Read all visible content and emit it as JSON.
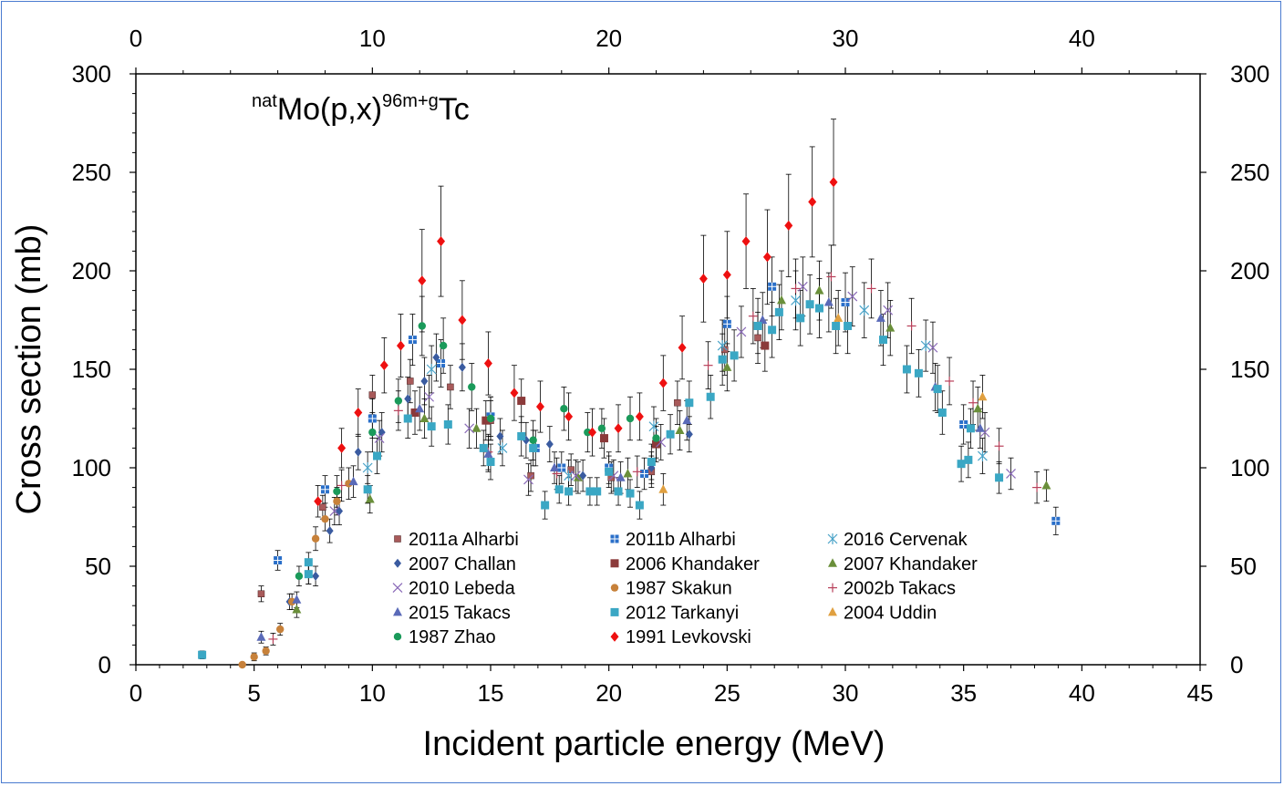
{
  "chart_data": {
    "type": "scatter",
    "title_parts": {
      "pre_sup": "nat",
      "main1": "Mo(p,x)",
      "mid_sup": "96m+g",
      "main2": "Tc"
    },
    "xlabel": "Incident particle energy (MeV)",
    "ylabel": "Cross section (mb)",
    "xlim": [
      0,
      45
    ],
    "ylim": [
      0,
      300
    ],
    "xticks": [
      "0",
      "5",
      "10",
      "15",
      "20",
      "25",
      "30",
      "35",
      "40",
      "45"
    ],
    "yticks": [
      "0",
      "50",
      "100",
      "150",
      "200",
      "250",
      "300"
    ],
    "x2ticks": [
      "0",
      "10",
      "20",
      "30",
      "40"
    ],
    "x2lim": [
      0,
      45
    ],
    "legend_position": "lower-center",
    "series": [
      {
        "name": "2011a Alharbi",
        "color": "#a85a5a",
        "marker": "square-small",
        "points": [
          [
            5.3,
            36,
            4
          ],
          [
            7.9,
            80,
            6
          ],
          [
            10.0,
            137,
            10
          ],
          [
            11.6,
            144,
            11
          ],
          [
            13.3,
            141,
            11
          ],
          [
            15.0,
            124,
            10
          ],
          [
            16.7,
            96,
            8
          ],
          [
            18.4,
            99,
            8
          ],
          [
            20.1,
            95,
            8
          ],
          [
            21.8,
            98,
            8
          ],
          [
            22.9,
            133,
            11
          ],
          [
            24.9,
            160,
            13
          ],
          [
            26.3,
            166,
            13
          ]
        ]
      },
      {
        "name": "2011b Alharbi",
        "color": "#2a6fc9",
        "marker": "square-cross",
        "points": [
          [
            6.0,
            53,
            5
          ],
          [
            8.0,
            89,
            7
          ],
          [
            10.0,
            125,
            10
          ],
          [
            11.7,
            165,
            13
          ],
          [
            12.9,
            153,
            12
          ],
          [
            15.0,
            126,
            10
          ],
          [
            16.9,
            110,
            9
          ],
          [
            18.0,
            100,
            8
          ],
          [
            20.0,
            100,
            8
          ],
          [
            21.5,
            97,
            8
          ],
          [
            25.0,
            173,
            14
          ],
          [
            26.9,
            192,
            15
          ],
          [
            30.0,
            184,
            15
          ],
          [
            35.0,
            122,
            10
          ],
          [
            38.9,
            73,
            7
          ]
        ]
      },
      {
        "name": "2016 Cervenak",
        "color": "#4aa3c8",
        "marker": "asterisk",
        "points": [
          [
            9.8,
            100,
            8
          ],
          [
            12.5,
            150,
            12
          ],
          [
            15.5,
            110,
            9
          ],
          [
            18.3,
            96,
            8
          ],
          [
            21.9,
            121,
            10
          ],
          [
            24.8,
            162,
            13
          ],
          [
            27.9,
            185,
            15
          ],
          [
            30.8,
            180,
            14
          ],
          [
            33.4,
            162,
            13
          ],
          [
            35.8,
            106,
            9
          ]
        ]
      },
      {
        "name": "2007 Challan",
        "color": "#3a5ba0",
        "marker": "diamond-small",
        "points": [
          [
            6.5,
            32,
            4
          ],
          [
            7.6,
            45,
            5
          ],
          [
            8.2,
            68,
            6
          ],
          [
            8.6,
            78,
            7
          ],
          [
            9.4,
            108,
            9
          ],
          [
            10.4,
            118,
            10
          ],
          [
            11.5,
            135,
            11
          ],
          [
            12.2,
            144,
            12
          ],
          [
            12.7,
            156,
            12
          ],
          [
            13.8,
            151,
            12
          ],
          [
            15.4,
            116,
            9
          ],
          [
            16.5,
            114,
            9
          ],
          [
            17.5,
            112,
            9
          ],
          [
            18.9,
            96,
            8
          ],
          [
            21.8,
            100,
            8
          ],
          [
            23.4,
            117,
            9
          ]
        ]
      },
      {
        "name": "2006 Khandaker",
        "color": "#8b3a3a",
        "marker": "square",
        "points": [
          [
            11.8,
            128,
            11
          ],
          [
            14.8,
            124,
            10
          ],
          [
            16.3,
            134,
            11
          ],
          [
            19.8,
            115,
            10
          ],
          [
            22.0,
            112,
            9
          ],
          [
            26.6,
            162,
            13
          ]
        ]
      },
      {
        "name": "2007 Khandaker",
        "color": "#6a8f3a",
        "marker": "triangle",
        "points": [
          [
            6.8,
            28,
            4
          ],
          [
            9.9,
            84,
            7
          ],
          [
            12.2,
            125,
            10
          ],
          [
            14.4,
            120,
            10
          ],
          [
            18.7,
            95,
            8
          ],
          [
            20.8,
            97,
            8
          ],
          [
            23.0,
            119,
            10
          ],
          [
            25.0,
            151,
            12
          ],
          [
            27.3,
            185,
            15
          ],
          [
            28.9,
            190,
            15
          ],
          [
            31.9,
            171,
            14
          ],
          [
            35.6,
            130,
            11
          ],
          [
            38.5,
            91,
            8
          ]
        ]
      },
      {
        "name": "2010 Lebeda",
        "color": "#8a6ab8",
        "marker": "x",
        "points": [
          [
            8.4,
            78,
            7
          ],
          [
            10.3,
            115,
            9
          ],
          [
            12.4,
            136,
            11
          ],
          [
            14.1,
            120,
            10
          ],
          [
            16.6,
            94,
            8
          ],
          [
            18.6,
            96,
            8
          ],
          [
            20.2,
            96,
            8
          ],
          [
            22.2,
            113,
            9
          ],
          [
            25.6,
            169,
            13
          ],
          [
            28.2,
            192,
            15
          ],
          [
            30.3,
            187,
            15
          ],
          [
            31.8,
            180,
            14
          ],
          [
            33.7,
            161,
            13
          ],
          [
            35.9,
            118,
            10
          ],
          [
            37.0,
            97,
            8
          ]
        ]
      },
      {
        "name": "1987 Skakun",
        "color": "#c7813a",
        "marker": "circle",
        "points": [
          [
            4.5,
            0,
            0
          ],
          [
            5.0,
            4,
            2
          ],
          [
            5.5,
            7,
            2
          ],
          [
            6.1,
            18,
            3
          ],
          [
            6.6,
            32,
            4
          ],
          [
            7.3,
            46,
            5
          ],
          [
            7.6,
            64,
            6
          ],
          [
            8.0,
            74,
            6
          ],
          [
            8.5,
            83,
            7
          ],
          [
            9.0,
            92,
            8
          ]
        ]
      },
      {
        "name": "2002b Takacs",
        "color": "#b8405a",
        "marker": "plus",
        "points": [
          [
            5.8,
            13,
            3
          ],
          [
            8.7,
            91,
            8
          ],
          [
            11.1,
            129,
            10
          ],
          [
            14.9,
            108,
            9
          ],
          [
            17.8,
            97,
            8
          ],
          [
            21.2,
            98,
            8
          ],
          [
            24.2,
            152,
            12
          ],
          [
            26.1,
            177,
            14
          ],
          [
            27.9,
            191,
            15
          ],
          [
            29.4,
            197,
            16
          ],
          [
            31.1,
            191,
            15
          ],
          [
            32.8,
            172,
            14
          ],
          [
            34.4,
            144,
            12
          ],
          [
            35.4,
            133,
            11
          ],
          [
            36.5,
            111,
            9
          ],
          [
            38.1,
            90,
            8
          ]
        ]
      },
      {
        "name": "2015 Takacs",
        "color": "#5a6ab8",
        "marker": "triangle",
        "points": [
          [
            5.3,
            14,
            3
          ],
          [
            6.8,
            33,
            4
          ],
          [
            9.2,
            93,
            8
          ],
          [
            12.0,
            130,
            11
          ],
          [
            14.9,
            107,
            9
          ],
          [
            17.7,
            100,
            8
          ],
          [
            20.5,
            95,
            8
          ],
          [
            23.3,
            124,
            10
          ],
          [
            26.5,
            175,
            14
          ],
          [
            29.3,
            184,
            15
          ],
          [
            31.5,
            176,
            14
          ],
          [
            33.8,
            141,
            12
          ],
          [
            35.7,
            120,
            10
          ]
        ]
      },
      {
        "name": "2012 Tarkanyi",
        "color": "#3aa7c4",
        "marker": "square",
        "points": [
          [
            2.8,
            5,
            2
          ],
          [
            7.3,
            52,
            5
          ],
          [
            7.3,
            46,
            5
          ],
          [
            9.8,
            89,
            7
          ],
          [
            10.2,
            106,
            9
          ],
          [
            11.5,
            125,
            10
          ],
          [
            12.5,
            121,
            10
          ],
          [
            13.2,
            122,
            10
          ],
          [
            14.7,
            110,
            9
          ],
          [
            15.0,
            103,
            9
          ],
          [
            16.3,
            116,
            10
          ],
          [
            16.8,
            110,
            9
          ],
          [
            17.3,
            81,
            7
          ],
          [
            17.9,
            89,
            7
          ],
          [
            18.3,
            88,
            7
          ],
          [
            19.2,
            88,
            7
          ],
          [
            19.5,
            88,
            7
          ],
          [
            20.0,
            98,
            8
          ],
          [
            20.4,
            88,
            7
          ],
          [
            20.9,
            87,
            7
          ],
          [
            21.3,
            81,
            7
          ],
          [
            21.8,
            103,
            9
          ],
          [
            22.6,
            117,
            10
          ],
          [
            23.4,
            133,
            11
          ],
          [
            24.3,
            136,
            11
          ],
          [
            24.8,
            155,
            13
          ],
          [
            25.3,
            157,
            13
          ],
          [
            26.3,
            172,
            14
          ],
          [
            26.9,
            170,
            14
          ],
          [
            27.2,
            179,
            14
          ],
          [
            28.1,
            176,
            14
          ],
          [
            28.5,
            183,
            15
          ],
          [
            28.9,
            181,
            15
          ],
          [
            29.6,
            172,
            14
          ],
          [
            30.1,
            172,
            14
          ],
          [
            31.6,
            165,
            13
          ],
          [
            32.6,
            150,
            12
          ],
          [
            33.1,
            148,
            12
          ],
          [
            33.9,
            140,
            12
          ],
          [
            34.1,
            128,
            11
          ],
          [
            34.9,
            102,
            9
          ],
          [
            35.2,
            104,
            9
          ],
          [
            35.3,
            120,
            10
          ],
          [
            36.5,
            95,
            8
          ]
        ]
      },
      {
        "name": "2004 Uddin",
        "color": "#e0a040",
        "marker": "triangle",
        "points": [
          [
            22.3,
            89,
            8
          ],
          [
            29.7,
            176,
            14
          ],
          [
            35.8,
            136,
            11
          ]
        ]
      },
      {
        "name": "1987 Zhao",
        "color": "#1a9a5a",
        "marker": "circle",
        "points": [
          [
            6.9,
            45,
            5
          ],
          [
            8.5,
            88,
            8
          ],
          [
            10.0,
            118,
            10
          ],
          [
            11.1,
            134,
            11
          ],
          [
            12.1,
            172,
            15
          ],
          [
            13.0,
            162,
            14
          ],
          [
            14.2,
            141,
            12
          ],
          [
            15.0,
            125,
            11
          ],
          [
            16.8,
            114,
            10
          ],
          [
            18.1,
            130,
            11
          ],
          [
            19.1,
            118,
            10
          ],
          [
            19.7,
            120,
            10
          ],
          [
            20.9,
            125,
            11
          ],
          [
            22.0,
            115,
            10
          ]
        ]
      },
      {
        "name": "1991 Levkovski",
        "color": "#ee1010",
        "marker": "diamond",
        "points": [
          [
            7.7,
            83,
            8
          ],
          [
            8.7,
            110,
            10
          ],
          [
            9.4,
            128,
            12
          ],
          [
            10.5,
            152,
            14
          ],
          [
            11.2,
            162,
            16
          ],
          [
            12.1,
            195,
            26
          ],
          [
            12.9,
            215,
            28
          ],
          [
            13.8,
            175,
            20
          ],
          [
            14.9,
            153,
            16
          ],
          [
            16.0,
            138,
            14
          ],
          [
            17.1,
            131,
            13
          ],
          [
            18.3,
            126,
            12
          ],
          [
            19.3,
            118,
            12
          ],
          [
            20.4,
            120,
            12
          ],
          [
            21.3,
            126,
            12
          ],
          [
            22.3,
            143,
            14
          ],
          [
            23.1,
            161,
            16
          ],
          [
            24.0,
            196,
            22
          ],
          [
            25.0,
            198,
            22
          ],
          [
            25.8,
            215,
            24
          ],
          [
            26.7,
            207,
            24
          ],
          [
            27.6,
            223,
            26
          ],
          [
            28.6,
            235,
            28
          ],
          [
            29.5,
            245,
            32
          ]
        ]
      }
    ]
  }
}
